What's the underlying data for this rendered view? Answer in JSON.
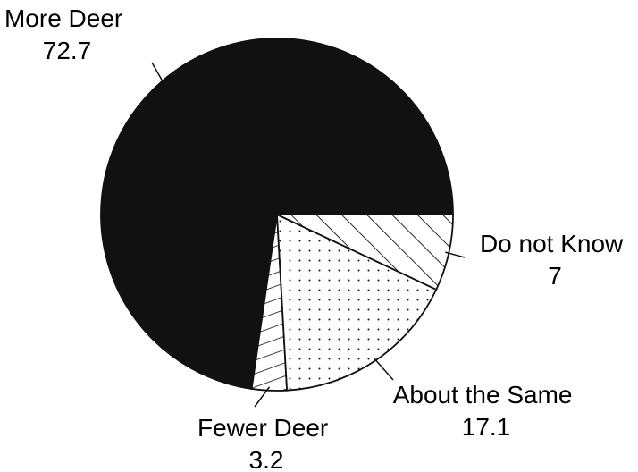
{
  "chart_data": {
    "type": "pie",
    "title": "",
    "slices": [
      {
        "label": "More Deer",
        "value_text": "72.7",
        "value": 72.7,
        "pattern": "solid"
      },
      {
        "label": "Fewer Deer",
        "value_text": "3.2",
        "value": 3.2,
        "pattern": "diagonal-hatch"
      },
      {
        "label": "About the Same",
        "value_text": "17.1",
        "value": 17.1,
        "pattern": "dots"
      },
      {
        "label": "Do not Know",
        "value_text": "7",
        "value": 7,
        "pattern": "diagonal-hatch"
      }
    ],
    "colors": {
      "ink": "#111111",
      "background": "#ffffff"
    },
    "legend": "none"
  }
}
